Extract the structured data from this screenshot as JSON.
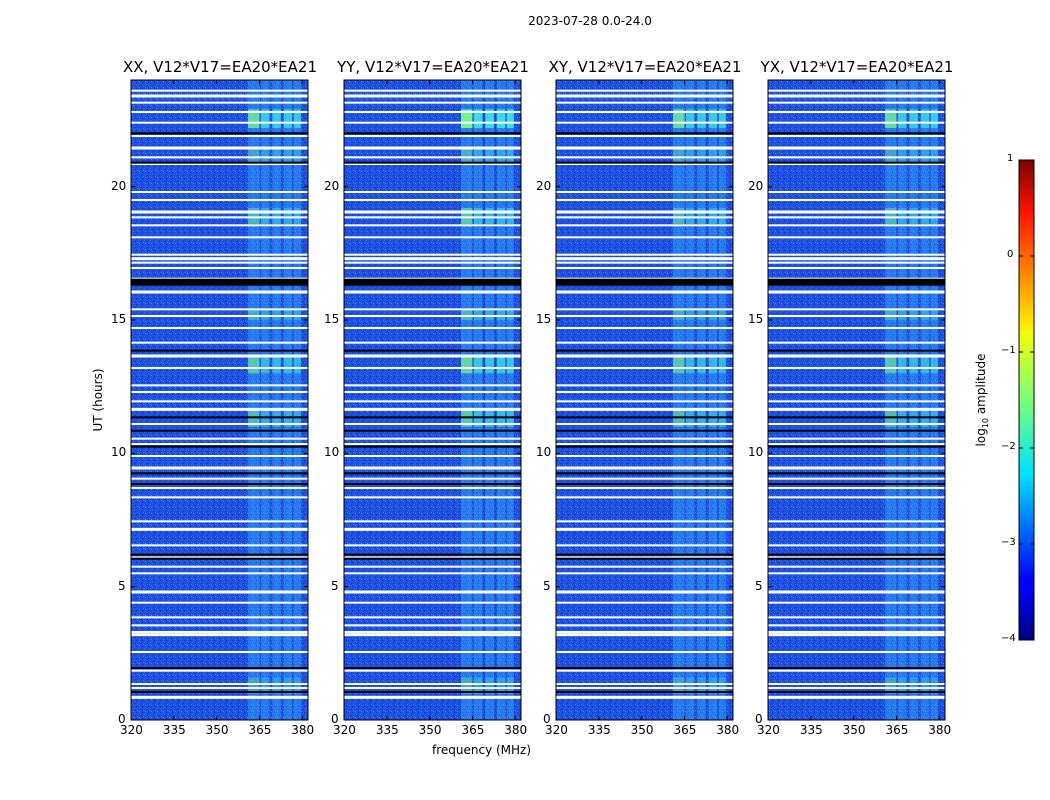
{
  "figure": {
    "suptitle": "2023-07-28 0.0-24.0",
    "xlabel": "frequency (MHz)",
    "ylabel": "UT (hours)",
    "colorbar_label_prefix": "log",
    "colorbar_label_sub": "10",
    "colorbar_label_suffix": " amplitude"
  },
  "chart_data": {
    "type": "heatmap",
    "title": "2023-07-28 0.0-24.0",
    "xlabel": "frequency (MHz)",
    "ylabel": "UT (hours)",
    "xlim": [
      320,
      382
    ],
    "ylim": [
      0,
      24
    ],
    "xticks": [
      320,
      335,
      350,
      365,
      380
    ],
    "xtick_labels": [
      "320",
      "335",
      "350",
      "365",
      "380"
    ],
    "yticks": [
      0,
      5,
      10,
      15,
      20
    ],
    "ytick_labels": [
      "0",
      "5",
      "10",
      "15",
      "20"
    ],
    "colorbar": {
      "label": "log10 amplitude",
      "range": [
        -4,
        1
      ],
      "ticks": [
        -4,
        -3,
        -2,
        -1,
        0,
        1
      ],
      "tick_labels": [
        "−4",
        "−3",
        "−2",
        "−1",
        "0",
        "1"
      ],
      "colormap": "jet"
    },
    "panels": [
      {
        "title": "XX, V12*V17=EA20*EA21",
        "polarization": "XX"
      },
      {
        "title": "YY, V12*V17=EA20*EA21",
        "polarization": "YY"
      },
      {
        "title": "XY, V12*V17=EA20*EA21",
        "polarization": "XY"
      },
      {
        "title": "YX, V12*V17=EA20*EA21",
        "polarization": "YX"
      }
    ],
    "background_log_amplitude": -3.2,
    "rfi_band_mhz": [
      [
        361,
        365
      ],
      [
        365.5,
        368.5
      ],
      [
        369.5,
        372.5
      ],
      [
        373.5,
        376.5
      ],
      [
        377,
        379.5
      ]
    ],
    "rfi_log_amplitude": -2.4,
    "flagged_rows_hours": [
      0.85,
      1.2,
      1.35,
      1.85,
      2.55,
      3.2,
      3.3,
      3.55,
      3.85,
      4.4,
      4.8,
      5.5,
      5.75,
      6.1,
      6.55,
      7.15,
      7.45,
      8.35,
      8.7,
      9.05,
      9.45,
      9.9,
      10.35,
      10.55,
      11.1,
      11.65,
      11.95,
      12.3,
      12.55,
      13.2,
      13.65,
      14.15,
      14.7,
      15.15,
      15.4,
      16.05,
      16.35,
      16.55,
      16.95,
      17.15,
      17.3,
      17.45,
      18.1,
      18.55,
      18.85,
      19.05,
      19.5,
      19.8,
      20.85,
      21.1,
      21.45,
      21.9,
      22.4,
      22.8,
      23.15,
      23.4,
      23.6
    ],
    "black_rows_hours": [
      1.05,
      1.95,
      6.05,
      6.2,
      8.85,
      9.25,
      10.25,
      10.85,
      11.35,
      13.85,
      16.4,
      16.45,
      16.5,
      20.9,
      22.0
    ]
  }
}
